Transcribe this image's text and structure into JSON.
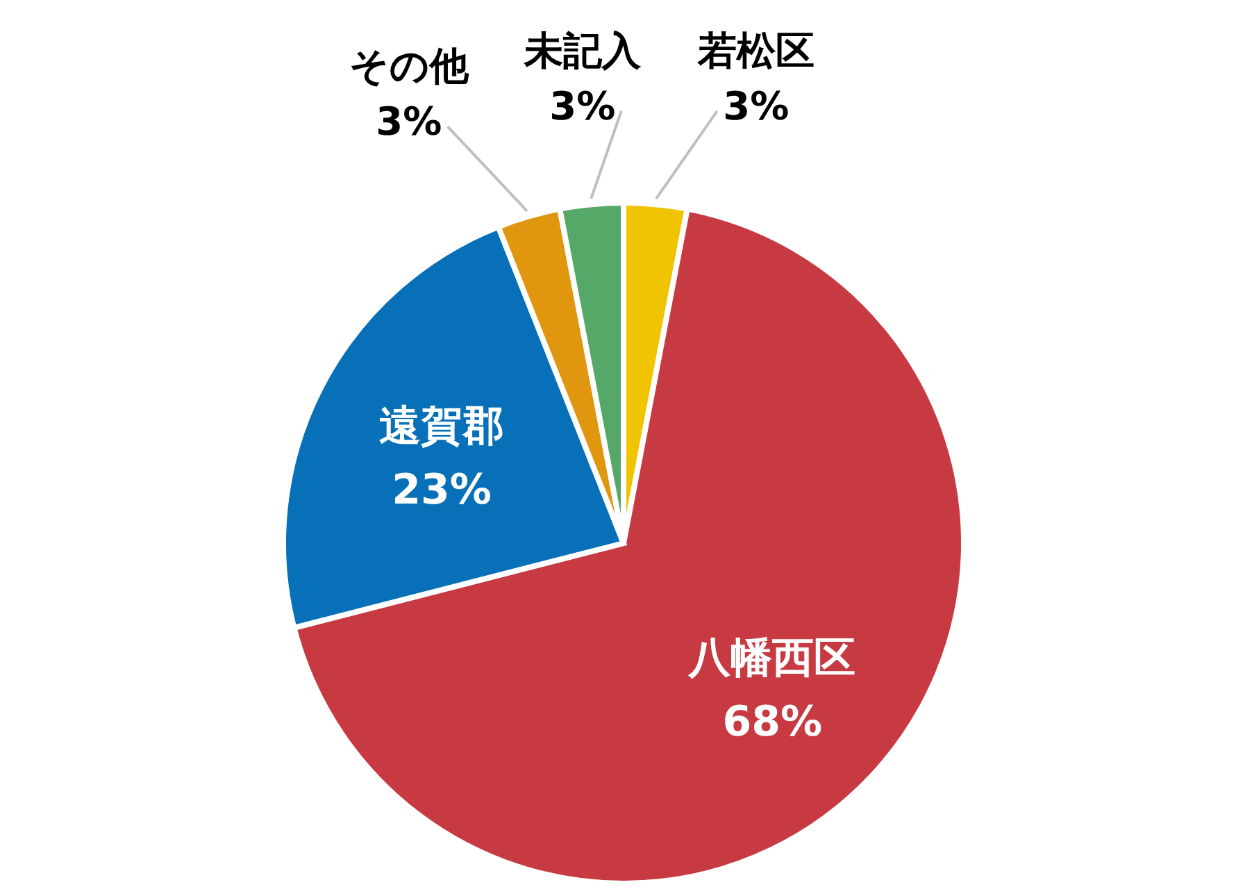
{
  "chart_data": {
    "type": "pie",
    "categories": [
      "若松区",
      "八幡西区",
      "遠賀郡",
      "その他",
      "未記入"
    ],
    "values": [
      3,
      68,
      23,
      3,
      3
    ],
    "colors": [
      "#f0c400",
      "#c83a42",
      "#0870b8",
      "#e0960f",
      "#55a868"
    ],
    "value_labels": [
      "3%",
      "68%",
      "23%",
      "3%",
      "3%"
    ]
  }
}
